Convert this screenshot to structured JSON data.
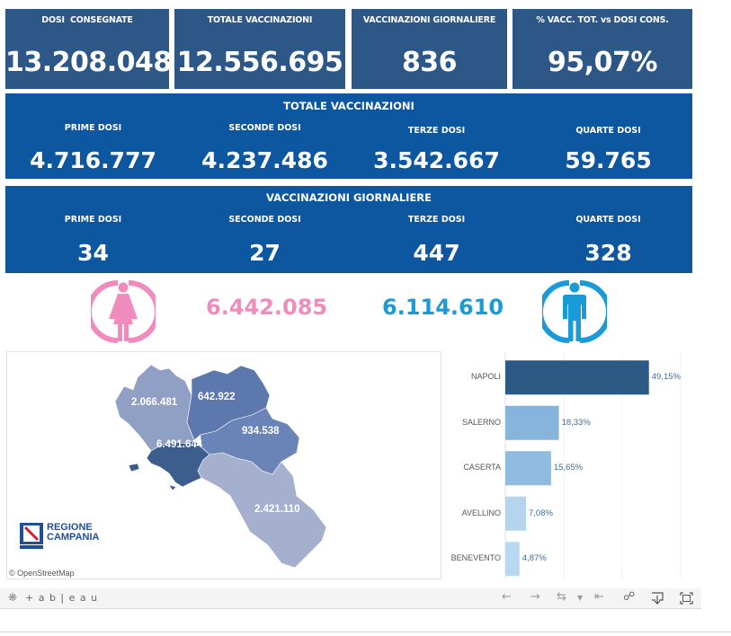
{
  "kpis": [
    {
      "label": "DOSI  CONSEGNATE",
      "value": "13.208.048"
    },
    {
      "label": "TOTALE VACCINAZIONI",
      "value": "12.556.695"
    },
    {
      "label": "VACCINAZIONI GIORNALIERE",
      "value": "836"
    },
    {
      "label": "% VACC. TOT. vs DOSI CONS.",
      "value": "95,07%"
    }
  ],
  "totale_vaccinazioni": {
    "title": "TOTALE VACCINAZIONI",
    "items": [
      {
        "label": "PRIME DOSI",
        "value": "4.716.777"
      },
      {
        "label": "SECONDE DOSI",
        "value": "4.237.486"
      },
      {
        "label": "TERZE DOSI",
        "value": "3.542.667"
      },
      {
        "label": "QUARTE DOSI",
        "value": "59.765"
      }
    ]
  },
  "vaccinazioni_giornaliere": {
    "title": "VACCINAZIONI GIORNALIERE",
    "items": [
      {
        "label": "PRIME DOSI",
        "value": "34"
      },
      {
        "label": "SECONDE DOSI",
        "value": "27"
      },
      {
        "label": "TERZE DOSI",
        "value": "447"
      },
      {
        "label": "QUARTE DOSI",
        "value": "328"
      }
    ]
  },
  "gender": {
    "female": {
      "value": "6.442.085",
      "color": "#f08bbd",
      "icon": "female-icon"
    },
    "male": {
      "value": "6.114.610",
      "color": "#1a9ad6",
      "icon": "male-icon"
    }
  },
  "map": {
    "regions": [
      {
        "value": "2.066.481",
        "color": "#909fc4"
      },
      {
        "value": "642.922",
        "color": "#5c78ad"
      },
      {
        "value": "934.538",
        "color": "#6a84b8"
      },
      {
        "value": "6.491.644",
        "color": "#3d5e8c"
      },
      {
        "value": "2.421.110",
        "color": "#a5b0ce"
      }
    ],
    "logo_text": [
      "REGIONE",
      "CAMPANIA"
    ],
    "attribution": "© OpenStreetMap"
  },
  "chart_data": {
    "type": "bar",
    "orientation": "horizontal",
    "categories": [
      "NAPOLI",
      "SALERNO",
      "CASERTA",
      "AVELLINO",
      "BENEVENTO"
    ],
    "values": [
      49.15,
      18.33,
      15.65,
      7.08,
      4.87
    ],
    "labels": [
      "49,15%",
      "18,33%",
      "15,65%",
      "7,08%",
      "4,87%"
    ],
    "colors": [
      "#2d5a85",
      "#86b4da",
      "#8fbbe0",
      "#b3d5ee",
      "#b8d8ef"
    ],
    "xlim": [
      0,
      60
    ],
    "grid": true,
    "title": "",
    "xlabel": "",
    "ylabel": ""
  },
  "footer": {
    "brand": "+ a b | e a u",
    "icons": [
      "undo-icon",
      "redo-icon",
      "revert-icon",
      "dropdown-icon",
      "reset-icon",
      "share-icon",
      "download-icon",
      "fullscreen-icon"
    ]
  }
}
